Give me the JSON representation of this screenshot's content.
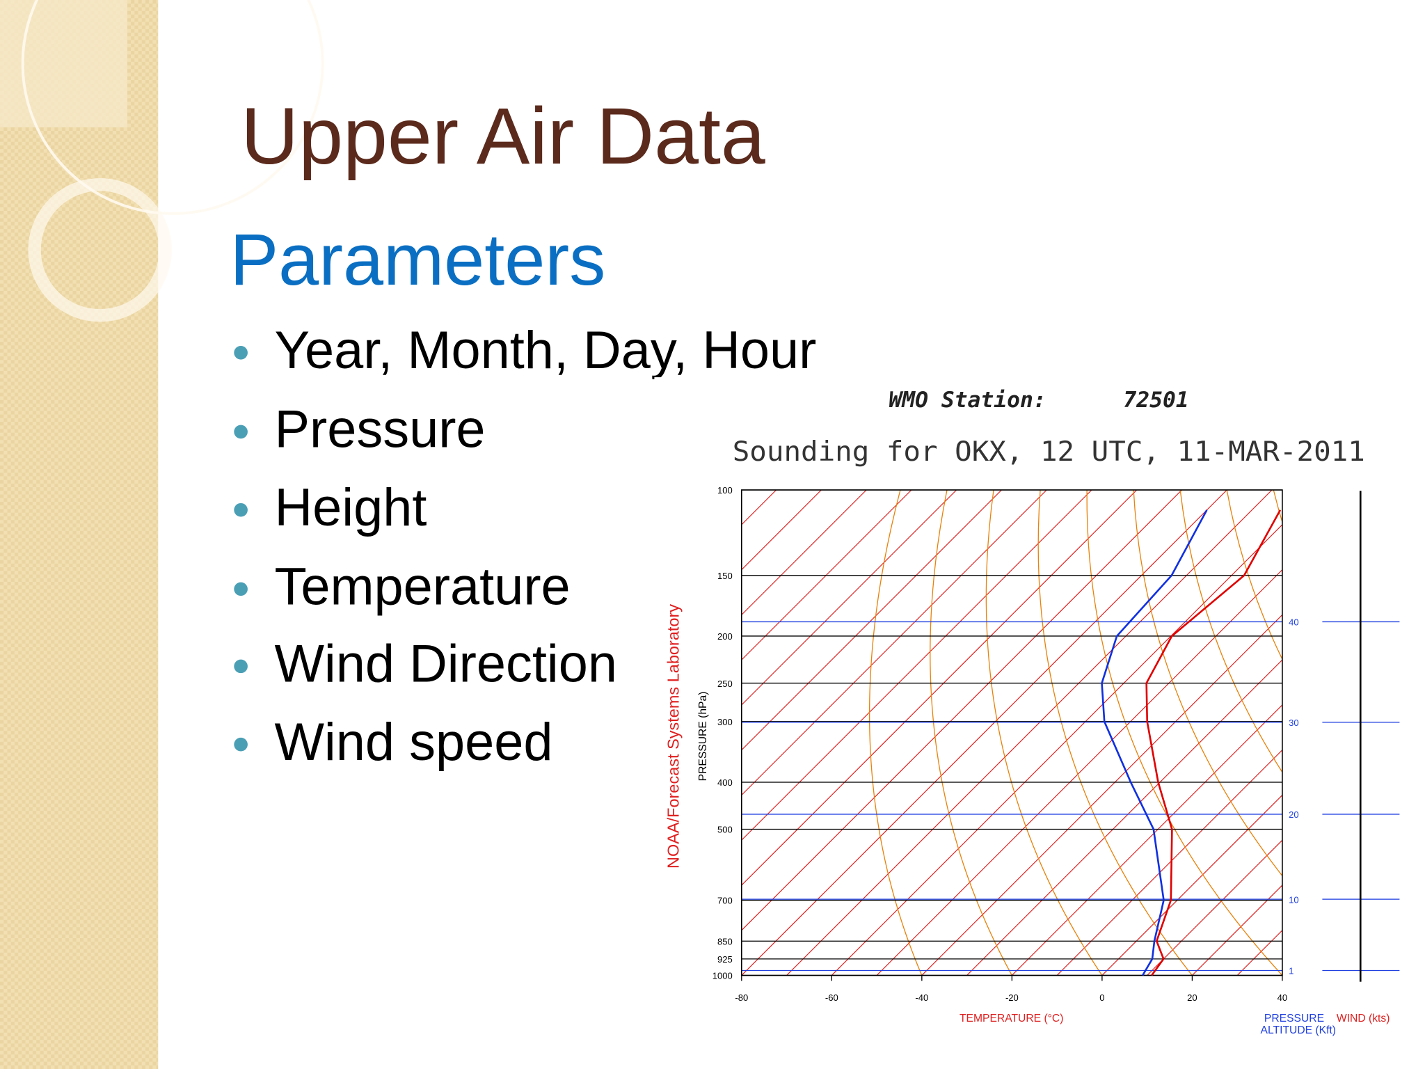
{
  "slide": {
    "title": "Upper Air Data",
    "subtitle": "Parameters",
    "bullets": [
      "Year, Month, Day, Hour",
      "Pressure",
      "Height",
      "Temperature",
      "Wind Direction",
      "Wind speed"
    ]
  },
  "chart_data": {
    "type": "skewt",
    "station_label": "WMO Station:",
    "station": "72501",
    "title": "Sounding for OKX, 12 UTC, 11-MAR-2011",
    "source": "NOAA/Forecast Systems Laboratory",
    "xlabel": "TEMPERATURE (°C)",
    "ylabel": "PRESSURE (hPa)",
    "y2label": [
      "PRESSURE",
      "ALTITUDE (Kft)"
    ],
    "wind_label": "WIND (kts)",
    "xlim": [
      -80,
      40
    ],
    "xticks": [
      -80,
      -60,
      -40,
      -20,
      0,
      20,
      40
    ],
    "ylim": [
      1000,
      100
    ],
    "log_y": true,
    "yticks": [
      100,
      150,
      200,
      250,
      300,
      400,
      500,
      700,
      850,
      925,
      1000
    ],
    "y2ticks": [
      40,
      30,
      20,
      10,
      1
    ],
    "levels": [
      1000,
      925,
      850,
      700,
      500,
      400,
      300,
      250,
      200,
      150,
      110
    ],
    "series": [
      {
        "color": "#e00000",
        "values": [
          11,
          10,
          4.5,
          -1.4,
          -16.9,
          -30.4,
          -46.3,
          -55,
          -59.8,
          -57.2,
          -63.7
        ]
      },
      {
        "color": "#1030e0",
        "values": [
          9,
          7.5,
          4,
          -3,
          -21,
          -36.5,
          -55.8,
          -64.9,
          -72,
          -73.3,
          -80
        ]
      }
    ]
  }
}
